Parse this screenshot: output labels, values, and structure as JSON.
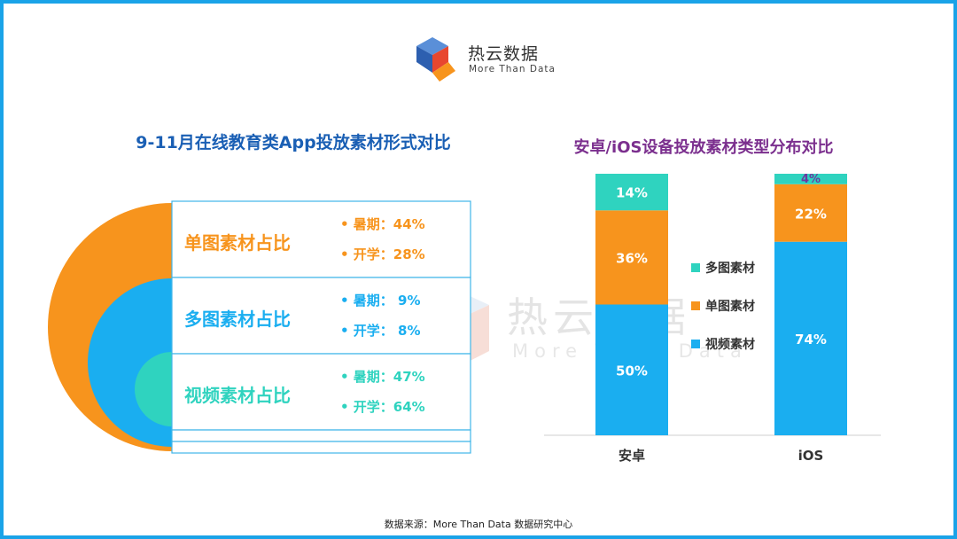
{
  "brand": {
    "name": "热云数据",
    "tagline": "More Than Data"
  },
  "colors": {
    "orange": "#f7941d",
    "blue": "#1aaef0",
    "teal": "#2fd3bf",
    "frame": "#1aa3e8",
    "left_title": "#1a5fb4",
    "right_title": "#7b2f8e"
  },
  "left_panel": {
    "title": "9-11月在线教育类App投放素材形式对比",
    "rows": [
      {
        "label": "单图素材占比",
        "color": "#f7941d",
        "bullets": [
          "暑期：44%",
          "开学：28%"
        ]
      },
      {
        "label": "多图素材占比",
        "color": "#1aaef0",
        "bullets": [
          "暑期：  9%",
          "开学：  8%"
        ]
      },
      {
        "label": "视频素材占比",
        "color": "#2fd3bf",
        "bullets": [
          "暑期：47%",
          "开学：64%"
        ]
      }
    ]
  },
  "chart_data": {
    "type": "bar",
    "stacked": true,
    "title": "安卓/iOS设备投放素材类型分布对比",
    "categories": [
      "安卓",
      "iOS"
    ],
    "series": [
      {
        "name": "视频素材",
        "color": "#1aaef0",
        "values": [
          50,
          74
        ],
        "labels": [
          "50%",
          "74%"
        ]
      },
      {
        "name": "单图素材",
        "color": "#f7941d",
        "values": [
          36,
          22
        ],
        "labels": [
          "36%",
          "22%"
        ]
      },
      {
        "name": "多图素材",
        "color": "#2fd3bf",
        "values": [
          14,
          4
        ],
        "labels": [
          "14%",
          "4%"
        ]
      }
    ],
    "ylim": [
      0,
      100
    ],
    "legend": "center",
    "grid": false
  },
  "footer": {
    "source": "数据来源：More  Than  Data  数据研究中心"
  }
}
